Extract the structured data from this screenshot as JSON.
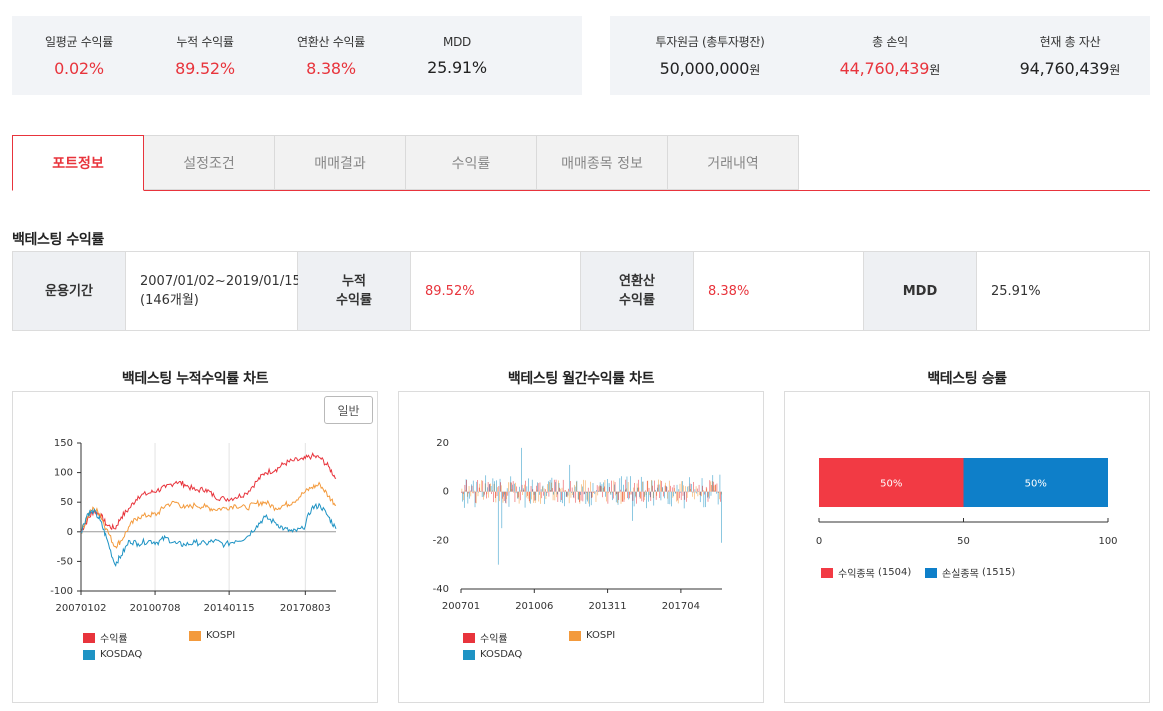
{
  "summary_left": [
    {
      "label": "일평균 수익률",
      "value": "0.02%",
      "tone": "red"
    },
    {
      "label": "누적 수익률",
      "value": "89.52%",
      "tone": "red"
    },
    {
      "label": "연환산 수익률",
      "value": "8.38%",
      "tone": "red"
    },
    {
      "label": "MDD",
      "value": "25.91%",
      "tone": "dark"
    }
  ],
  "summary_right": [
    {
      "label": "투자원금 (총투자평잔)",
      "value": "50,000,000",
      "unit": "원",
      "tone": "dark"
    },
    {
      "label": "총 손익",
      "value": "44,760,439",
      "unit": "원",
      "tone": "red"
    },
    {
      "label": "현재 총 자산",
      "value": "94,760,439",
      "unit": "원",
      "tone": "dark"
    }
  ],
  "tabs": [
    {
      "label": "포트정보",
      "active": true
    },
    {
      "label": "설정조건",
      "active": false
    },
    {
      "label": "매매결과",
      "active": false
    },
    {
      "label": "수익률",
      "active": false
    },
    {
      "label": "매매종목 정보",
      "active": false
    },
    {
      "label": "거래내역",
      "active": false
    }
  ],
  "backtest": {
    "title": "백테스팅 수익률",
    "period_label": "운용기간",
    "period_value_line1": "2007/01/02~2019/01/15",
    "period_value_line2": "(146개월)",
    "cum_label_line1": "누적",
    "cum_label_line2": "수익률",
    "cum_value": "89.52%",
    "ann_label_line1": "연환산",
    "ann_label_line2": "수익률",
    "ann_value": "8.38%",
    "mdd_label": "MDD",
    "mdd_value": "25.91%"
  },
  "colors": {
    "red": "#e8343c",
    "orange": "#f39a3c",
    "blue": "#1e93c4",
    "win_red": "#f23a44",
    "loss_blue": "#0e7fc9"
  },
  "chart_data": [
    {
      "type": "line",
      "title": "백테스팅 누적수익률 차트",
      "button_label": "일반",
      "x_tick_labels": [
        "20070102",
        "20100708",
        "20140115",
        "20170803"
      ],
      "x_ticks": [
        2007.0,
        2010.5,
        2014.0,
        2017.6
      ],
      "x_range": [
        2007.0,
        2019.05
      ],
      "ylim": [
        -100,
        150
      ],
      "y_ticks": [
        -100,
        -50,
        0,
        50,
        100,
        150
      ],
      "legend": [
        "수익률",
        "KOSPI",
        "KOSDAQ"
      ],
      "series": [
        {
          "name": "수익률",
          "color": "#e8343c",
          "x": [
            2007.0,
            2007.3,
            2007.6,
            2007.9,
            2008.2,
            2008.6,
            2008.9,
            2009.3,
            2009.7,
            2010.2,
            2010.6,
            2011.0,
            2011.5,
            2011.9,
            2012.4,
            2012.9,
            2013.3,
            2013.8,
            2014.3,
            2014.8,
            2015.3,
            2015.7,
            2016.2,
            2016.6,
            2017.0,
            2017.5,
            2017.9,
            2018.3,
            2018.7,
            2019.05
          ],
          "y": [
            0,
            20,
            35,
            30,
            12,
            5,
            25,
            40,
            60,
            65,
            70,
            75,
            85,
            80,
            70,
            72,
            60,
            55,
            58,
            65,
            85,
            100,
            105,
            115,
            120,
            122,
            128,
            125,
            110,
            90
          ]
        },
        {
          "name": "KOSPI",
          "color": "#f39a3c",
          "x": [
            2007.0,
            2007.3,
            2007.6,
            2007.9,
            2008.2,
            2008.6,
            2008.9,
            2009.3,
            2009.7,
            2010.2,
            2010.6,
            2011.0,
            2011.5,
            2011.9,
            2012.4,
            2012.9,
            2013.3,
            2013.8,
            2014.3,
            2014.8,
            2015.3,
            2015.7,
            2016.2,
            2016.6,
            2017.0,
            2017.5,
            2017.9,
            2018.3,
            2018.7,
            2019.05
          ],
          "y": [
            0,
            25,
            40,
            30,
            5,
            -25,
            -15,
            10,
            25,
            28,
            30,
            45,
            50,
            40,
            45,
            42,
            38,
            40,
            45,
            40,
            48,
            50,
            40,
            45,
            50,
            65,
            75,
            80,
            60,
            45
          ]
        },
        {
          "name": "KOSDAQ",
          "color": "#1e93c4",
          "x": [
            2007.0,
            2007.3,
            2007.6,
            2007.9,
            2008.2,
            2008.6,
            2008.9,
            2009.3,
            2009.7,
            2010.2,
            2010.6,
            2011.0,
            2011.5,
            2011.9,
            2012.4,
            2012.9,
            2013.3,
            2013.8,
            2014.3,
            2014.8,
            2015.3,
            2015.7,
            2016.2,
            2016.6,
            2017.0,
            2017.5,
            2017.9,
            2018.3,
            2018.7,
            2019.05
          ],
          "y": [
            0,
            30,
            35,
            20,
            -10,
            -55,
            -40,
            -15,
            -20,
            -15,
            -18,
            -10,
            -20,
            -22,
            -18,
            -20,
            -15,
            -22,
            -15,
            -10,
            10,
            25,
            15,
            5,
            0,
            5,
            40,
            45,
            25,
            5
          ]
        }
      ]
    },
    {
      "type": "bar",
      "title": "백테스팅 월간수익률 차트",
      "x_tick_labels": [
        "200701",
        "201006",
        "201311",
        "201704"
      ],
      "ylim": [
        -40,
        20
      ],
      "y_ticks": [
        -40,
        -20,
        0,
        20
      ],
      "legend": [
        "수익률",
        "KOSPI",
        "KOSDAQ"
      ],
      "months": 146
    },
    {
      "type": "bar",
      "title": "백테스팅 승률",
      "orientation": "horizontal-stacked",
      "xlim": [
        0,
        100
      ],
      "x_ticks": [
        0,
        50,
        100
      ],
      "segments": [
        {
          "label": "50%",
          "value": 50,
          "color": "#f23a44"
        },
        {
          "label": "50%",
          "value": 50,
          "color": "#0e7fc9"
        }
      ],
      "legend": [
        {
          "name": "수익종목",
          "count": "(1504)",
          "color": "#f23a44"
        },
        {
          "name": "손실종목",
          "count": "(1515)",
          "color": "#0e7fc9"
        }
      ]
    }
  ]
}
